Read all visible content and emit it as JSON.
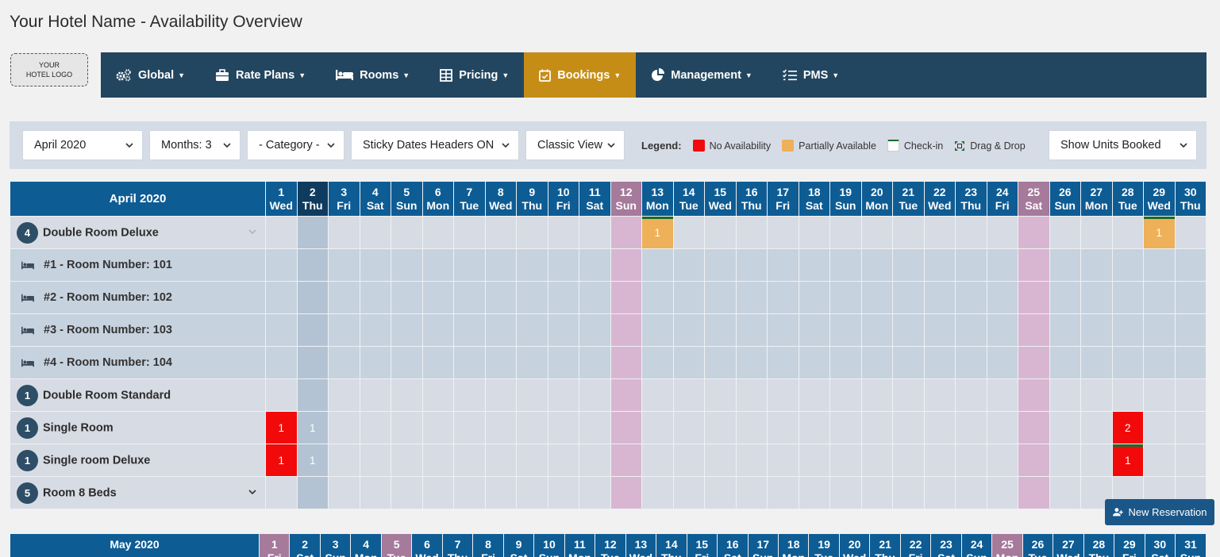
{
  "page": {
    "title": "Your Hotel Name - Availability Overview"
  },
  "logo": {
    "line1": "YOUR",
    "line2": "HOTEL LOGO"
  },
  "nav": {
    "items": [
      {
        "label": "Global",
        "icon": "gears-icon"
      },
      {
        "label": "Rate Plans",
        "icon": "briefcase-icon"
      },
      {
        "label": "Rooms",
        "icon": "bed-icon"
      },
      {
        "label": "Pricing",
        "icon": "pricing-table-icon"
      },
      {
        "label": "Bookings",
        "icon": "calendar-check-icon",
        "active": true
      },
      {
        "label": "Management",
        "icon": "pie-chart-icon"
      },
      {
        "label": "PMS",
        "icon": "checklist-icon"
      }
    ]
  },
  "filters": {
    "month": "April 2020",
    "months": "Months: 3",
    "category": "- Category -",
    "sticky": "Sticky Dates Headers ON",
    "view": "Classic View",
    "units": "Show Units Booked"
  },
  "legend": {
    "title": "Legend:",
    "items": [
      {
        "label": "No Availability",
        "color": "#ee0c0c"
      },
      {
        "label": "Partially Available",
        "color": "#efb05a"
      },
      {
        "label": "Check-in",
        "color": "#ffffff"
      },
      {
        "label": "Drag & Drop",
        "icon": "drag-drop-icon"
      }
    ]
  },
  "april": {
    "title": "April 2020",
    "days": [
      {
        "d": "1",
        "w": "Wed"
      },
      {
        "d": "2",
        "w": "Thu",
        "today": true
      },
      {
        "d": "3",
        "w": "Fri"
      },
      {
        "d": "4",
        "w": "Sat"
      },
      {
        "d": "5",
        "w": "Sun"
      },
      {
        "d": "6",
        "w": "Mon"
      },
      {
        "d": "7",
        "w": "Tue"
      },
      {
        "d": "8",
        "w": "Wed"
      },
      {
        "d": "9",
        "w": "Thu"
      },
      {
        "d": "10",
        "w": "Fri"
      },
      {
        "d": "11",
        "w": "Sat"
      },
      {
        "d": "12",
        "w": "Sun",
        "wk": true
      },
      {
        "d": "13",
        "w": "Mon"
      },
      {
        "d": "14",
        "w": "Tue"
      },
      {
        "d": "15",
        "w": "Wed"
      },
      {
        "d": "16",
        "w": "Thu"
      },
      {
        "d": "17",
        "w": "Fri"
      },
      {
        "d": "18",
        "w": "Sat"
      },
      {
        "d": "19",
        "w": "Sun"
      },
      {
        "d": "20",
        "w": "Mon"
      },
      {
        "d": "21",
        "w": "Tue"
      },
      {
        "d": "22",
        "w": "Wed"
      },
      {
        "d": "23",
        "w": "Thu"
      },
      {
        "d": "24",
        "w": "Fri"
      },
      {
        "d": "25",
        "w": "Sat",
        "wk": true
      },
      {
        "d": "26",
        "w": "Sun"
      },
      {
        "d": "27",
        "w": "Mon"
      },
      {
        "d": "28",
        "w": "Tue"
      },
      {
        "d": "29",
        "w": "Wed"
      },
      {
        "d": "30",
        "w": "Thu"
      }
    ],
    "rows": [
      {
        "type": "room",
        "badge": "4",
        "label": "Double Room Deluxe",
        "chevron": "down-light",
        "cells": {
          "13": {
            "v": "1",
            "s": "part",
            "checkin": true
          },
          "29": {
            "v": "1",
            "s": "part",
            "checkin": true
          }
        }
      },
      {
        "type": "unit",
        "label": "#1 - Room Number: 101",
        "cells": {}
      },
      {
        "type": "unit",
        "label": "#2 - Room Number: 102",
        "cells": {}
      },
      {
        "type": "unit",
        "label": "#3 - Room Number: 103",
        "cells": {}
      },
      {
        "type": "unit",
        "label": "#4 - Room Number: 104",
        "cells": {}
      },
      {
        "type": "room",
        "badge": "1",
        "label": "Double Room Standard",
        "cells": {}
      },
      {
        "type": "room",
        "badge": "1",
        "label": "Single Room",
        "cells": {
          "1": {
            "v": "1",
            "s": "full"
          },
          "2": {
            "v": "1",
            "s": "full-dark"
          },
          "28": {
            "v": "2",
            "s": "full"
          }
        }
      },
      {
        "type": "room",
        "badge": "1",
        "label": "Single room Deluxe",
        "cells": {
          "1": {
            "v": "1",
            "s": "full"
          },
          "2": {
            "v": "1",
            "s": "full-dark"
          },
          "28": {
            "v": "1",
            "s": "full",
            "checkin": true
          }
        }
      },
      {
        "type": "room",
        "badge": "5",
        "label": "Room 8 Beds",
        "chevron": "down",
        "cells": {}
      }
    ]
  },
  "new_reservation": {
    "label": "New Reservation"
  },
  "may": {
    "title": "May 2020",
    "days": [
      {
        "d": "1",
        "w": "Fri",
        "wk": true
      },
      {
        "d": "2",
        "w": "Sat"
      },
      {
        "d": "3",
        "w": "Sun"
      },
      {
        "d": "4",
        "w": "Mon"
      },
      {
        "d": "5",
        "w": "Tue",
        "wk": true
      },
      {
        "d": "6",
        "w": "Wed"
      },
      {
        "d": "7",
        "w": "Thu"
      },
      {
        "d": "8",
        "w": "Fri"
      },
      {
        "d": "9",
        "w": "Sat"
      },
      {
        "d": "10",
        "w": "Sun"
      },
      {
        "d": "11",
        "w": "Mon"
      },
      {
        "d": "12",
        "w": "Tue"
      },
      {
        "d": "13",
        "w": "Wed"
      },
      {
        "d": "14",
        "w": "Thu"
      },
      {
        "d": "15",
        "w": "Fri"
      },
      {
        "d": "16",
        "w": "Sat"
      },
      {
        "d": "17",
        "w": "Sun"
      },
      {
        "d": "18",
        "w": "Mon"
      },
      {
        "d": "19",
        "w": "Tue"
      },
      {
        "d": "20",
        "w": "Wed"
      },
      {
        "d": "21",
        "w": "Thu"
      },
      {
        "d": "22",
        "w": "Fri"
      },
      {
        "d": "23",
        "w": "Sat"
      },
      {
        "d": "24",
        "w": "Sun"
      },
      {
        "d": "25",
        "w": "Mon",
        "wk": true
      },
      {
        "d": "26",
        "w": "Tue"
      },
      {
        "d": "27",
        "w": "Wed"
      },
      {
        "d": "28",
        "w": "Thu"
      },
      {
        "d": "29",
        "w": "Fri"
      },
      {
        "d": "30",
        "w": "Sat"
      },
      {
        "d": "31",
        "w": "Sun"
      }
    ]
  }
}
